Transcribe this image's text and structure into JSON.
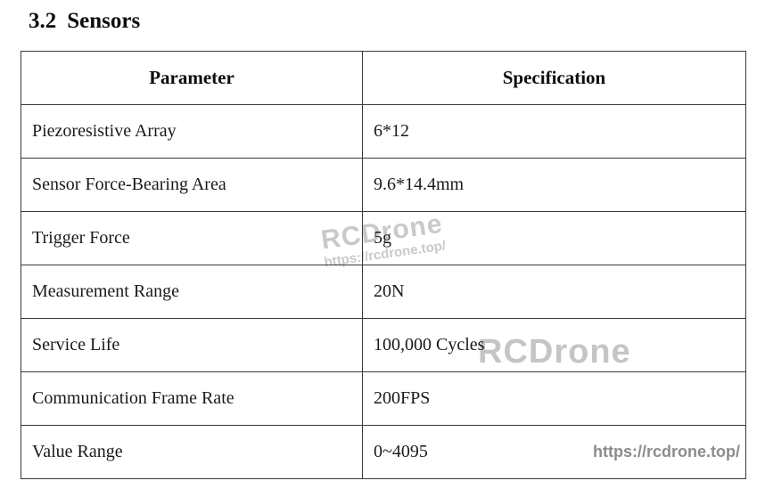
{
  "heading": {
    "number": "3.2",
    "title": "Sensors"
  },
  "table": {
    "columns": [
      "Parameter",
      "Specification"
    ],
    "rows": [
      {
        "parameter": "Piezoresistive Array",
        "specification": "6*12"
      },
      {
        "parameter": "Sensor Force-Bearing Area",
        "specification": "9.6*14.4mm"
      },
      {
        "parameter": "Trigger Force",
        "specification": "5g"
      },
      {
        "parameter": "Measurement Range",
        "specification": "20N"
      },
      {
        "parameter": "Service Life",
        "specification": "100,000 Cycles"
      },
      {
        "parameter": "Communication Frame Rate",
        "specification": "200FPS"
      },
      {
        "parameter": "Value Range",
        "specification": "0~4095"
      }
    ]
  },
  "watermarks": {
    "stamp_brand": "RCDrone",
    "stamp_url": "https://rcdrone.top/",
    "brand_large": "RCDrone",
    "url_bottom": "https://rcdrone.top/"
  },
  "colors": {
    "border": "#3a3a3a",
    "text": "#1a1a1a",
    "watermark_light": "#c9c9c9",
    "watermark_dark": "#8c8c8c"
  }
}
